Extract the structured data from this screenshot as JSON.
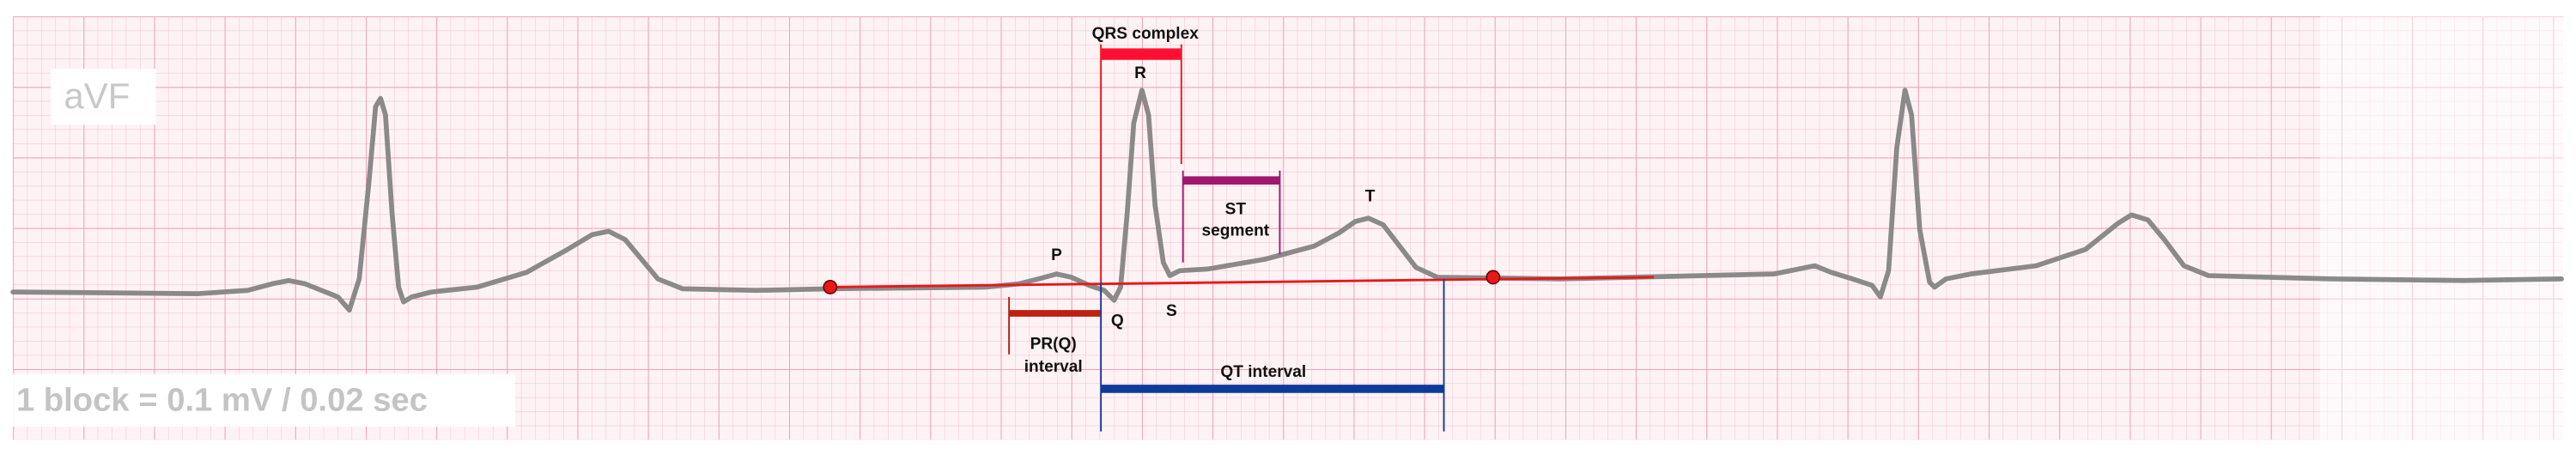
{
  "lead": "aVF",
  "scale_note": "1 block = 0.1 mV / 0.02 sec",
  "waves": {
    "p": "P",
    "q": "Q",
    "r": "R",
    "s": "S",
    "t": "T"
  },
  "intervals": {
    "qrs_complex": "QRS complex",
    "st_segment": [
      "ST",
      "segment"
    ],
    "pr_interval": [
      "PR(Q)",
      "interval"
    ],
    "qt_interval": "QT interval"
  }
}
